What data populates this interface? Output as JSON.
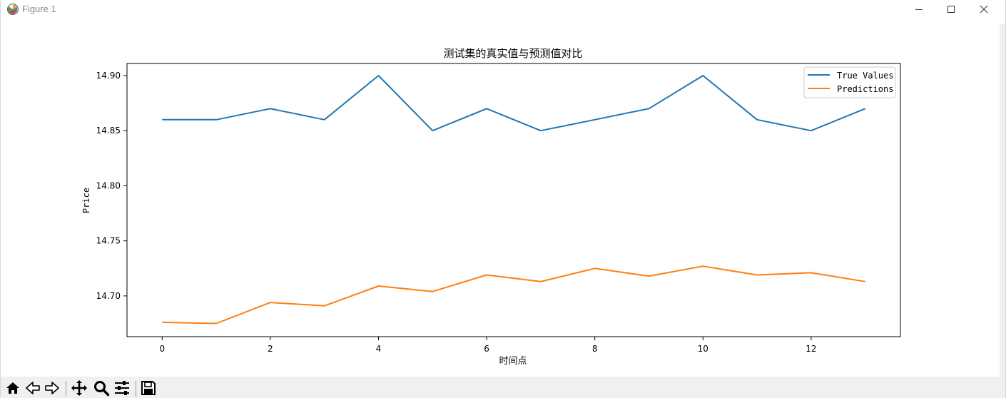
{
  "window": {
    "title": "Figure 1"
  },
  "toolbar": {
    "buttons": [
      "home-icon",
      "back-icon",
      "forward-icon",
      "pan-icon",
      "zoom-icon",
      "configure-subplots-icon",
      "save-icon"
    ]
  },
  "chart_data": {
    "type": "line",
    "title": "测试集的真实值与预测值对比",
    "xlabel": "时间点",
    "ylabel": "Price",
    "x": [
      0,
      1,
      2,
      3,
      4,
      5,
      6,
      7,
      8,
      9,
      10,
      11,
      12,
      13
    ],
    "xlim": [
      -0.65,
      13.65
    ],
    "ylim": [
      14.663,
      14.911
    ],
    "xticks": [
      0,
      2,
      4,
      6,
      8,
      10,
      12
    ],
    "yticks": [
      14.7,
      14.75,
      14.8,
      14.85,
      14.9
    ],
    "ytick_labels": [
      "14.70",
      "14.75",
      "14.80",
      "14.85",
      "14.90"
    ],
    "grid": false,
    "legend_position": "top-right",
    "series": [
      {
        "name": "True Values",
        "color": "#1f77b4",
        "values": [
          14.86,
          14.86,
          14.87,
          14.86,
          14.9,
          14.85,
          14.87,
          14.85,
          14.86,
          14.87,
          14.9,
          14.86,
          14.85,
          14.87
        ]
      },
      {
        "name": "Predictions",
        "color": "#ff7f0e",
        "values": [
          14.676,
          14.675,
          14.694,
          14.691,
          14.709,
          14.704,
          14.719,
          14.713,
          14.725,
          14.718,
          14.727,
          14.719,
          14.721,
          14.713
        ]
      }
    ]
  }
}
